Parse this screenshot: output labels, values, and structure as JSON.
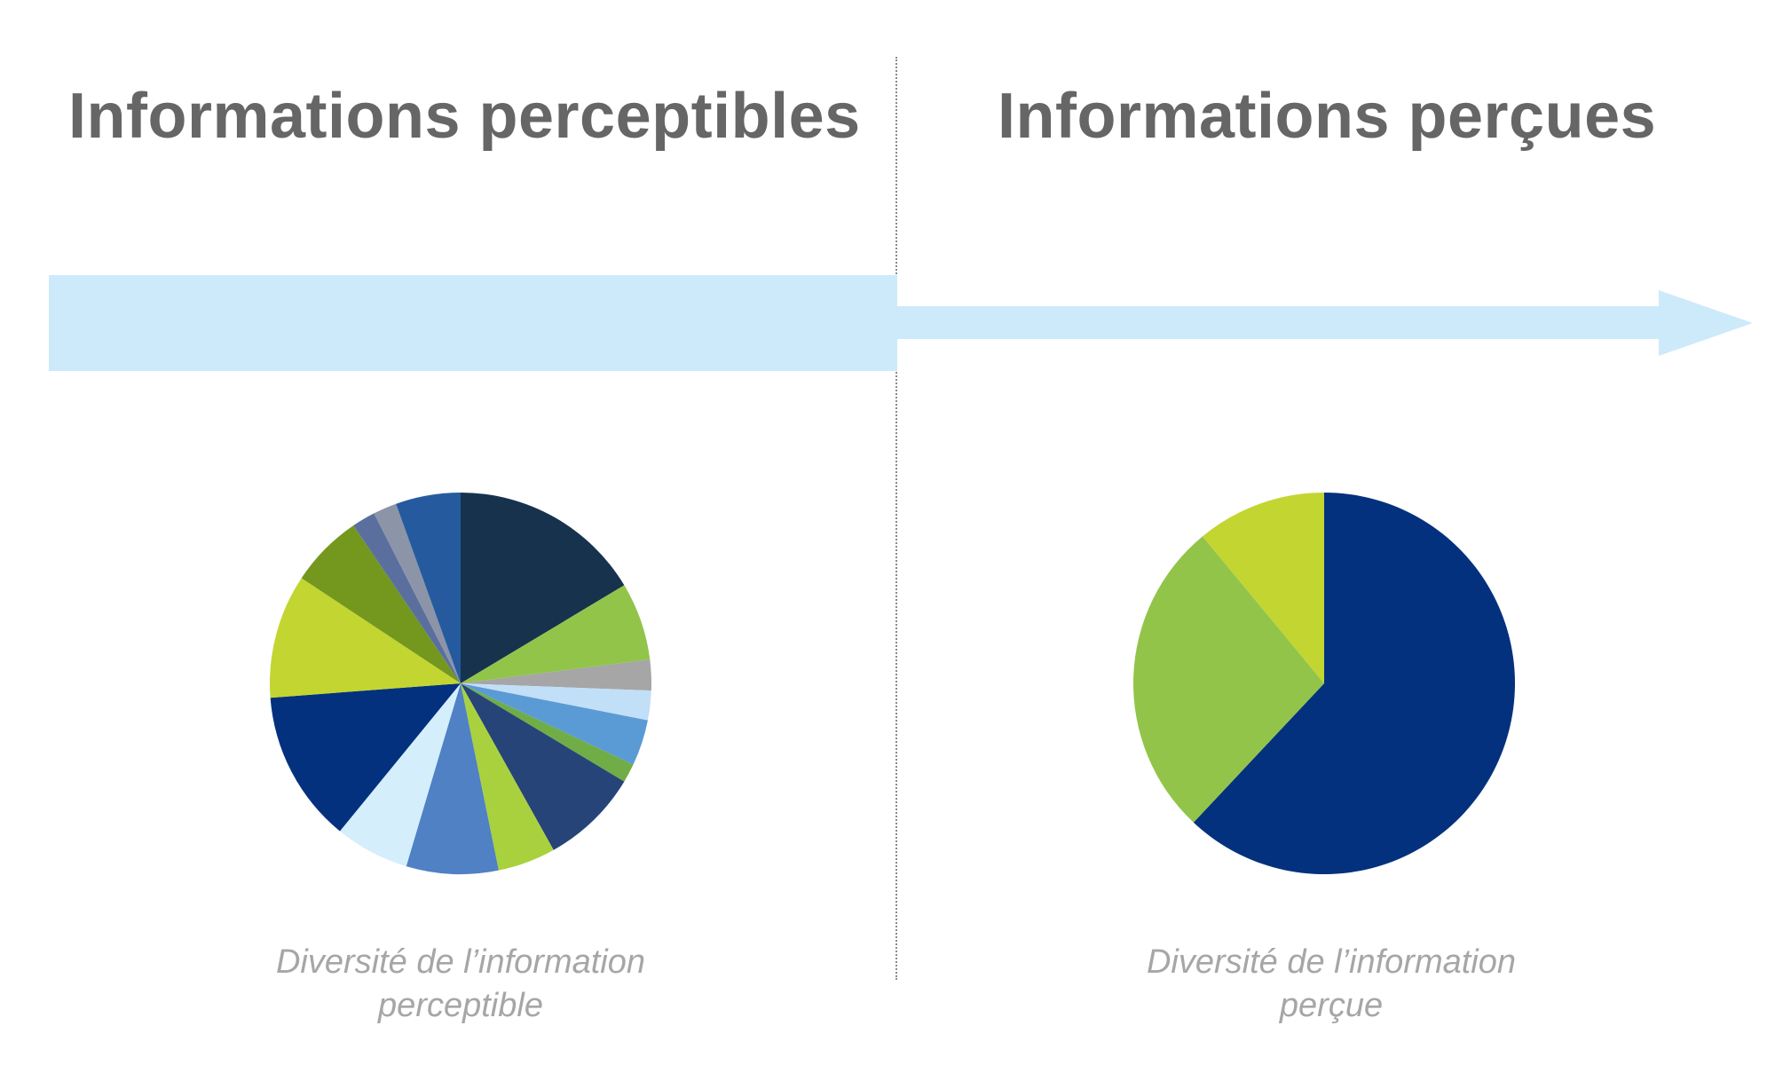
{
  "headings": {
    "left": "Informations perceptibles",
    "right": "Informations perçues"
  },
  "captions": {
    "left_line1": "Diversité de l’information",
    "left_line2": "perceptible",
    "right_line1": "Diversité de l’information",
    "right_line2": "perçue"
  },
  "colors": {
    "heading": "#666666",
    "caption": "#a6a6a6",
    "arrow": "#cdeafb",
    "divider": "#8a8a8a"
  },
  "chart_data": [
    {
      "type": "pie",
      "title": "",
      "start_angle": "12 o'clock",
      "direction": "clockwise",
      "slices": [
        {
          "value": 16.4,
          "color": "#17324d"
        },
        {
          "value": 6.6,
          "color": "#92c44a"
        },
        {
          "value": 2.6,
          "color": "#a6a6a6"
        },
        {
          "value": 2.5,
          "color": "#c2dff8"
        },
        {
          "value": 3.9,
          "color": "#5b9bd5"
        },
        {
          "value": 1.6,
          "color": "#70ad47"
        },
        {
          "value": 8.3,
          "color": "#264478"
        },
        {
          "value": 4.9,
          "color": "#a9d13e"
        },
        {
          "value": 7.8,
          "color": "#4f81c4"
        },
        {
          "value": 6.3,
          "color": "#d4eefc"
        },
        {
          "value": 12.9,
          "color": "#04317e"
        },
        {
          "value": 10.5,
          "color": "#c3d531"
        },
        {
          "value": 6.2,
          "color": "#74981e"
        },
        {
          "value": 2.0,
          "color": "#5b6f9f"
        },
        {
          "value": 2.0,
          "color": "#8c94a8"
        },
        {
          "value": 5.5,
          "color": "#255b9e"
        }
      ]
    },
    {
      "type": "pie",
      "title": "",
      "start_angle": "12 o'clock",
      "direction": "clockwise",
      "slices": [
        {
          "value": 62.0,
          "color": "#04317e"
        },
        {
          "value": 27.0,
          "color": "#92c44a"
        },
        {
          "value": 11.0,
          "color": "#c3d531"
        }
      ]
    }
  ]
}
